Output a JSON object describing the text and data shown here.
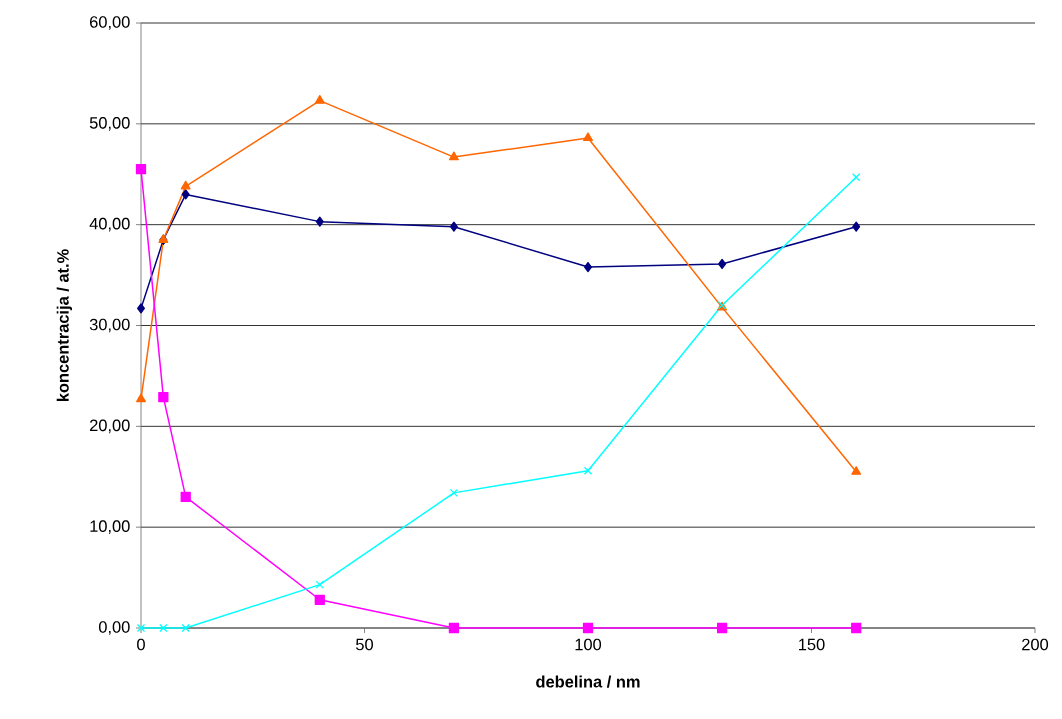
{
  "chart_data": {
    "type": "line",
    "xlabel": "debelina / nm",
    "ylabel": "koncentracija / at.%",
    "x": [
      0,
      5,
      10,
      40,
      70,
      100,
      130,
      160
    ],
    "series": [
      {
        "color": "#000080",
        "marker": "diamond",
        "values": [
          31.7,
          38.5,
          43.0,
          40.3,
          39.8,
          35.8,
          36.1,
          39.8
        ]
      },
      {
        "color": "#ff6600",
        "marker": "triangle",
        "values": [
          22.7,
          38.5,
          43.8,
          52.3,
          46.7,
          48.6,
          31.8,
          15.5
        ]
      },
      {
        "color": "#ff00ff",
        "marker": "square",
        "values": [
          45.5,
          22.9,
          13.0,
          2.8,
          0,
          0,
          0,
          0
        ]
      },
      {
        "color": "#00ffff",
        "marker": "cross",
        "values": [
          0,
          0,
          0,
          4.3,
          13.4,
          15.6,
          32.0,
          44.7
        ]
      }
    ],
    "xlim": [
      0,
      200
    ],
    "xticks": [
      0,
      50,
      100,
      150,
      200
    ],
    "ylim": [
      0,
      60
    ],
    "yticks": [
      {
        "value": 0,
        "label": "0,00"
      },
      {
        "value": 10,
        "label": "10,00"
      },
      {
        "value": 20,
        "label": "20,00"
      },
      {
        "value": 30,
        "label": "30,00"
      },
      {
        "value": 40,
        "label": "40,00"
      },
      {
        "value": 50,
        "label": "50,00"
      },
      {
        "value": 60,
        "label": "60,00"
      }
    ],
    "grid": "y"
  }
}
